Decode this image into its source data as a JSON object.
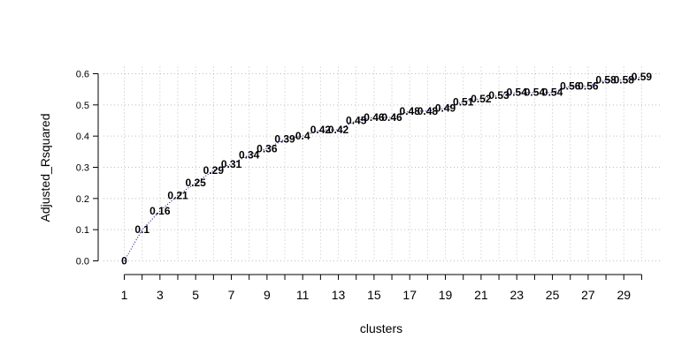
{
  "chart_data": {
    "type": "line",
    "title": "",
    "xlabel": "clusters",
    "ylabel": "Adjusted_Rsquared",
    "x": [
      1,
      2,
      3,
      4,
      5,
      6,
      7,
      8,
      9,
      10,
      11,
      12,
      13,
      14,
      15,
      16,
      17,
      18,
      19,
      20,
      21,
      22,
      23,
      24,
      25,
      26,
      27,
      28,
      29,
      30
    ],
    "series": [
      {
        "values": [
          0,
          0.1,
          0.16,
          0.21,
          0.25,
          0.29,
          0.31,
          0.34,
          0.36,
          0.39,
          0.4,
          0.42,
          0.42,
          0.45,
          0.46,
          0.46,
          0.48,
          0.48,
          0.49,
          0.51,
          0.52,
          0.53,
          0.54,
          0.54,
          0.54,
          0.56,
          0.56,
          0.58,
          0.58,
          0.59
        ],
        "labels": [
          "0",
          "0.1",
          "0.16",
          "0.21",
          "0.25",
          "0.29",
          "0.31",
          "0.34",
          "0.36",
          "0.39",
          "0.4",
          "0.42",
          "0.42",
          "0.45",
          "0.46",
          "0.46",
          "0.48",
          "0.48",
          "0.49",
          "0.51",
          "0.52",
          "0.53",
          "0.54",
          "0.54",
          "0.54",
          "0.56",
          "0.56",
          "0.58",
          "0.58",
          "0.59"
        ]
      }
    ],
    "xticks": [
      1,
      3,
      5,
      7,
      9,
      11,
      13,
      15,
      17,
      19,
      21,
      23,
      25,
      27,
      29
    ],
    "yticks": [
      0.0,
      0.1,
      0.2,
      0.3,
      0.4,
      0.5,
      0.6
    ],
    "ytick_labels": [
      "0.0",
      "0.1",
      "0.2",
      "0.3",
      "0.4",
      "0.5",
      "0.6"
    ],
    "xlim": [
      1,
      30
    ],
    "ylim": [
      0,
      0.6
    ],
    "grid": true,
    "line_style": "dotted",
    "colors": {
      "line": "#00008b",
      "grid": "#bebebe",
      "axis": "#000000"
    }
  }
}
